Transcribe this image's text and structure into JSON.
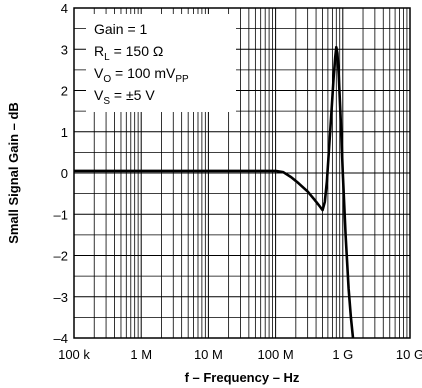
{
  "chart_data": {
    "type": "line",
    "title": "",
    "xlabel": "f – Frequency – Hz",
    "ylabel": "Small Signal Gain – dB",
    "x_scale": "log",
    "xlim": [
      100000,
      10000000000
    ],
    "ylim": [
      -4,
      4
    ],
    "grid": true,
    "x_tick_labels": [
      {
        "value": 100000,
        "label": "100 k"
      },
      {
        "value": 1000000,
        "label": "1 M"
      },
      {
        "value": 10000000,
        "label": "10 M"
      },
      {
        "value": 100000000,
        "label": "100 M"
      },
      {
        "value": 1000000000,
        "label": "1 G"
      },
      {
        "value": 10000000000,
        "label": "10 G"
      }
    ],
    "y_tick_labels": [
      {
        "value": 4,
        "label": "4"
      },
      {
        "value": 3,
        "label": "3"
      },
      {
        "value": 2,
        "label": "2"
      },
      {
        "value": 1,
        "label": "1"
      },
      {
        "value": 0,
        "label": "0"
      },
      {
        "value": -1,
        "label": "–1"
      },
      {
        "value": -2,
        "label": "–2"
      },
      {
        "value": -3,
        "label": "–3"
      },
      {
        "value": -4,
        "label": "–4"
      }
    ],
    "conditions": [
      {
        "main": "Gain = 1",
        "sub": "",
        "tail": ""
      },
      {
        "main": "R",
        "sub": "L",
        "tail": " = 150 Ω"
      },
      {
        "main": "V",
        "sub": "O",
        "tail": " = 100 mV",
        "sub2": "PP"
      },
      {
        "main": "V",
        "sub": "S",
        "tail": " = ±5 V"
      }
    ],
    "series": [
      {
        "points": [
          [
            100000,
            0.05
          ],
          [
            1000000,
            0.05
          ],
          [
            10000000,
            0.05
          ],
          [
            100000000,
            0.05
          ],
          [
            130000000,
            0.02
          ],
          [
            170000000,
            -0.1
          ],
          [
            220000000,
            -0.25
          ],
          [
            300000000,
            -0.45
          ],
          [
            380000000,
            -0.65
          ],
          [
            450000000,
            -0.8
          ],
          [
            500000000,
            -0.9
          ],
          [
            540000000,
            -0.7
          ],
          [
            580000000,
            -0.2
          ],
          [
            620000000,
            0.5
          ],
          [
            680000000,
            1.5
          ],
          [
            730000000,
            2.3
          ],
          [
            770000000,
            2.8
          ],
          [
            800000000,
            3.05
          ],
          [
            830000000,
            2.9
          ],
          [
            870000000,
            2.4
          ],
          [
            930000000,
            1.3
          ],
          [
            1000000000,
            0.0
          ],
          [
            1100000000,
            -1.5
          ],
          [
            1220000000,
            -2.8
          ],
          [
            1320000000,
            -3.5
          ],
          [
            1420000000,
            -4.0
          ]
        ]
      }
    ]
  }
}
